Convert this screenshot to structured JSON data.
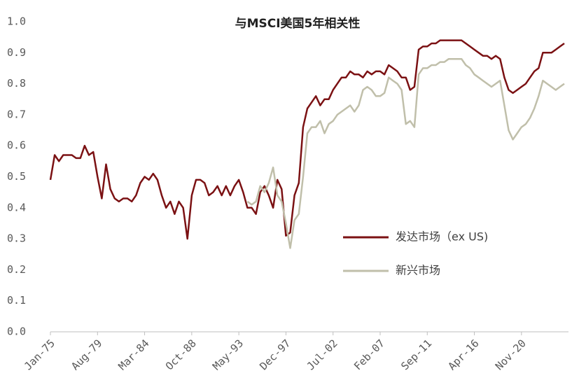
{
  "chart_data": {
    "type": "line",
    "title": "与MSCI美国5年相关性",
    "categories": [
      "Jan-75",
      null,
      null,
      null,
      null,
      null,
      null,
      null,
      null,
      null,
      null,
      "Aug-79",
      null,
      null,
      null,
      null,
      null,
      null,
      null,
      null,
      null,
      null,
      "Mar-84",
      null,
      null,
      null,
      null,
      null,
      null,
      null,
      null,
      null,
      null,
      "Oct-88",
      null,
      null,
      null,
      null,
      null,
      null,
      null,
      null,
      null,
      null,
      "May-93",
      null,
      null,
      null,
      null,
      null,
      null,
      null,
      null,
      null,
      null,
      "Dec-97",
      null,
      null,
      null,
      null,
      null,
      null,
      null,
      null,
      null,
      null,
      "Jul-02",
      null,
      null,
      null,
      null,
      null,
      null,
      null,
      null,
      null,
      null,
      "Feb-07",
      null,
      null,
      null,
      null,
      null,
      null,
      null,
      null,
      null,
      null,
      "Sep-11",
      null,
      null,
      null,
      null,
      null,
      null,
      null,
      null,
      null,
      null,
      "Apr-16",
      null,
      null,
      null,
      null,
      null,
      null,
      null,
      null,
      null,
      null,
      "Nov-20",
      null,
      null,
      null,
      null,
      null,
      null,
      null,
      null,
      null,
      null
    ],
    "series": [
      {
        "name": "发达市场（ex US)",
        "color": "#7b1113",
        "values": [
          0.49,
          0.57,
          0.55,
          0.57,
          0.57,
          0.57,
          0.56,
          0.56,
          0.6,
          0.57,
          0.58,
          0.5,
          0.43,
          0.54,
          0.46,
          0.43,
          0.42,
          0.43,
          0.43,
          0.42,
          0.44,
          0.48,
          0.5,
          0.49,
          0.51,
          0.49,
          0.44,
          0.4,
          0.42,
          0.38,
          0.42,
          0.4,
          0.3,
          0.44,
          0.49,
          0.49,
          0.48,
          0.44,
          0.45,
          0.47,
          0.44,
          0.47,
          0.44,
          0.47,
          0.49,
          0.45,
          0.4,
          0.4,
          0.38,
          0.45,
          0.47,
          0.44,
          0.4,
          0.49,
          0.46,
          0.31,
          0.32,
          0.44,
          0.48,
          0.66,
          0.72,
          0.74,
          0.76,
          0.73,
          0.75,
          0.75,
          0.78,
          0.8,
          0.82,
          0.82,
          0.84,
          0.83,
          0.83,
          0.82,
          0.84,
          0.83,
          0.84,
          0.84,
          0.83,
          0.86,
          0.85,
          0.84,
          0.82,
          0.82,
          0.78,
          0.79,
          0.91,
          0.92,
          0.92,
          0.93,
          0.93,
          0.94,
          0.94,
          0.94,
          0.94,
          0.94,
          0.94,
          0.93,
          0.92,
          0.91,
          0.9,
          0.89,
          0.89,
          0.88,
          0.89,
          0.88,
          0.82,
          0.78,
          0.77,
          0.78,
          0.79,
          0.8,
          0.82,
          0.84,
          0.85,
          0.9,
          0.9,
          0.9,
          0.91,
          0.92,
          0.93
        ]
      },
      {
        "name": "新兴市场",
        "color": "#c0bfaa",
        "values": [
          null,
          null,
          null,
          null,
          null,
          null,
          null,
          null,
          null,
          null,
          null,
          null,
          null,
          null,
          null,
          null,
          null,
          null,
          null,
          null,
          null,
          null,
          null,
          null,
          null,
          null,
          null,
          null,
          null,
          null,
          null,
          null,
          null,
          null,
          null,
          null,
          null,
          null,
          null,
          null,
          null,
          null,
          null,
          null,
          null,
          null,
          0.42,
          0.41,
          0.42,
          0.47,
          0.45,
          0.48,
          0.53,
          0.44,
          0.42,
          0.35,
          0.27,
          0.36,
          0.38,
          0.5,
          0.64,
          0.66,
          0.66,
          0.68,
          0.64,
          0.67,
          0.68,
          0.7,
          0.71,
          0.72,
          0.73,
          0.71,
          0.73,
          0.78,
          0.79,
          0.78,
          0.76,
          0.76,
          0.77,
          0.82,
          0.81,
          0.8,
          0.78,
          0.67,
          0.68,
          0.66,
          0.83,
          0.85,
          0.85,
          0.86,
          0.86,
          0.87,
          0.87,
          0.88,
          0.88,
          0.88,
          0.88,
          0.86,
          0.85,
          0.83,
          0.82,
          0.81,
          0.8,
          0.79,
          0.8,
          0.81,
          0.73,
          0.65,
          0.62,
          0.64,
          0.66,
          0.67,
          0.69,
          0.72,
          0.76,
          0.81,
          0.8,
          0.79,
          0.78,
          0.79,
          0.8
        ]
      }
    ],
    "ylim": [
      0,
      1
    ],
    "yticks": [
      {
        "value": 0,
        "label": "0.0"
      },
      0.1,
      0.2,
      0.3,
      0.4,
      0.5,
      0.6,
      0.7,
      0.8,
      0.9,
      {
        "value": 1,
        "label": "1.0"
      }
    ],
    "grid": false,
    "legend": "right"
  }
}
